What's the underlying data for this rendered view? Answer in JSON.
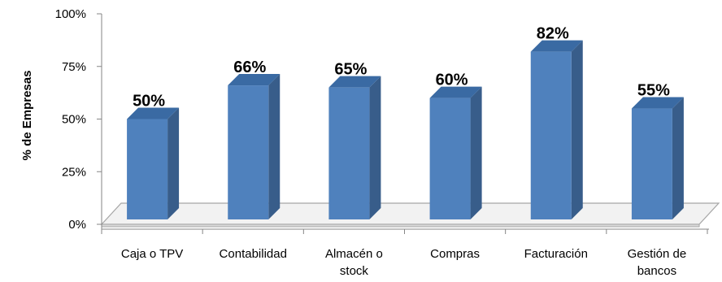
{
  "chart_data": {
    "type": "bar",
    "style": "3d-column",
    "categories": [
      [
        "Caja o TPV"
      ],
      [
        "Contabilidad"
      ],
      [
        "Almacén o",
        "stock"
      ],
      [
        "Compras"
      ],
      [
        "Facturación"
      ],
      [
        "Gestión de",
        "bancos"
      ]
    ],
    "values": [
      50,
      66,
      65,
      60,
      82,
      55
    ],
    "data_labels": [
      "50%",
      "66%",
      "65%",
      "60%",
      "82%",
      "55%"
    ],
    "ylabel": "% de Empresas",
    "xlabel": "",
    "ylim": [
      0,
      100
    ],
    "yticks": [
      0,
      25,
      50,
      75,
      100
    ],
    "ytick_labels": [
      "0%",
      "25%",
      "50%",
      "75%",
      "100%"
    ],
    "grid": false,
    "legend": "none",
    "colors": {
      "bar_front": "#4F81BD",
      "bar_side": "#385D8A",
      "bar_top": "#3A6AA3",
      "floor_fill": "#F2F2F2",
      "floor_edge": "#A6A6A6",
      "axis": "#868686"
    }
  }
}
